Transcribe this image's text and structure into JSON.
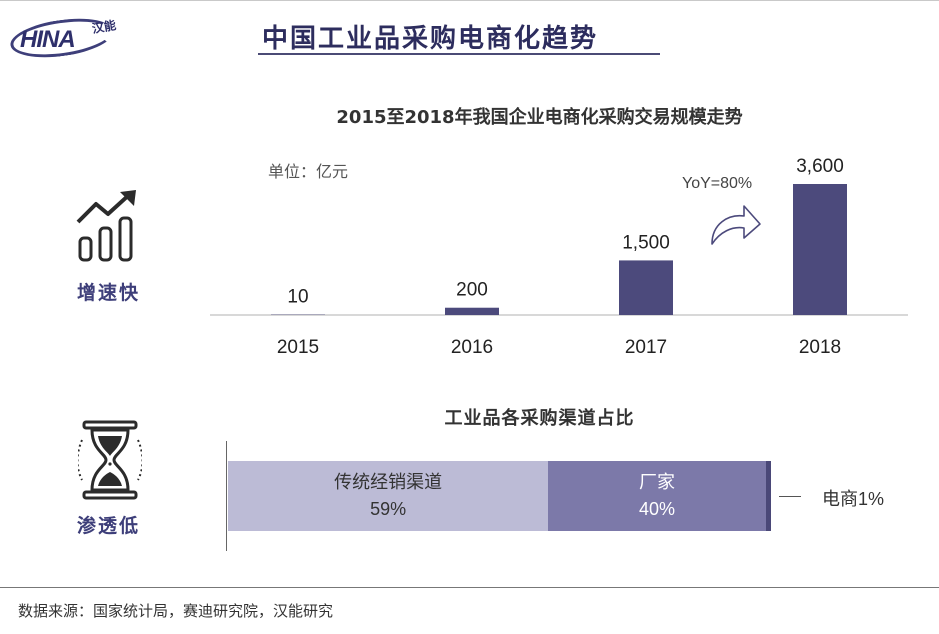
{
  "logo": {
    "text": "HINA",
    "cn": "汉能"
  },
  "page_title": "中国工业品采购电商化趋势",
  "growth_chart": {
    "title": "2015至2018年我国企业电商化采购交易规模走势",
    "unit": "单位：亿元",
    "yoy": "YoY=80%",
    "side_label": "增速快"
  },
  "channel_chart": {
    "title": "工业品各采购渠道占比",
    "side_label": "渗透低",
    "segments": [
      {
        "name": "传统经销渠道",
        "value_label": "59%"
      },
      {
        "name": "厂家",
        "value_label": "40%"
      },
      {
        "name": "电商",
        "value_label": "1%"
      }
    ]
  },
  "source": "数据来源：国家统计局，赛迪研究院，汉能研究",
  "colors": {
    "bar": "#4c4a7c",
    "seg_traditional": "#bcbbd6",
    "seg_manufacturer": "#7c79a9",
    "seg_ecommerce": "#4a4878",
    "accent": "#3e3f7a"
  },
  "chart_data": [
    {
      "type": "bar",
      "title": "2015至2018年我国企业电商化采购交易规模走势",
      "ylabel": "单位：亿元",
      "categories": [
        "2015",
        "2016",
        "2017",
        "2018"
      ],
      "values": [
        10,
        200,
        1500,
        3600
      ],
      "value_labels": [
        "10",
        "200",
        "1,500",
        "3,600"
      ],
      "annotations": [
        "YoY=80%"
      ],
      "ylim": [
        0,
        3600
      ],
      "grid": false
    },
    {
      "type": "bar",
      "orientation": "horizontal-stacked",
      "title": "工业品各采购渠道占比",
      "series": [
        {
          "name": "传统经销渠道",
          "values": [
            59
          ]
        },
        {
          "name": "厂家",
          "values": [
            40
          ]
        },
        {
          "name": "电商",
          "values": [
            1
          ]
        }
      ]
    }
  ]
}
